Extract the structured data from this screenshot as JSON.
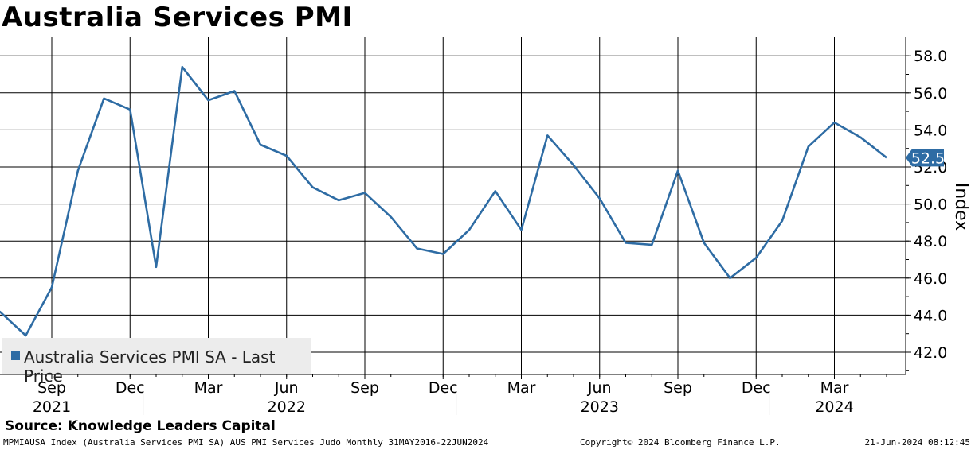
{
  "header": {
    "title": "Australia Services PMI"
  },
  "source": "Source: Knowledge Leaders Capital",
  "footer": {
    "left": "MPMIAUSA Index (Australia Services PMI SA) AUS PMI Services Judo  Monthly 31MAY2016-22JUN2024",
    "middle": "Copyright© 2024 Bloomberg Finance L.P.",
    "right": "21-Jun-2024 08:12:45"
  },
  "colors": {
    "line": "#2e6ca4",
    "grid": "#000000"
  },
  "chart_data": {
    "type": "line",
    "title": "Australia Services PMI",
    "ylabel": "Index",
    "ylim": [
      41.0,
      59.0
    ],
    "yticks": [
      42.0,
      44.0,
      46.0,
      48.0,
      50.0,
      52.0,
      54.0,
      56.0,
      58.0
    ],
    "ytick_labels": [
      "42.0",
      "44.0",
      "46.0",
      "48.0",
      "50.0",
      "52.0",
      "54.0",
      "56.0",
      "58.0"
    ],
    "grid": true,
    "legend": "bottom-left",
    "last_value_label": "52.5",
    "x_month_ticks": [
      {
        "date": "2021-09",
        "label": "Sep"
      },
      {
        "date": "2021-12",
        "label": "Dec"
      },
      {
        "date": "2022-03",
        "label": "Mar"
      },
      {
        "date": "2022-06",
        "label": "Jun"
      },
      {
        "date": "2022-09",
        "label": "Sep"
      },
      {
        "date": "2022-12",
        "label": "Dec"
      },
      {
        "date": "2023-03",
        "label": "Mar"
      },
      {
        "date": "2023-06",
        "label": "Jun"
      },
      {
        "date": "2023-09",
        "label": "Sep"
      },
      {
        "date": "2023-12",
        "label": "Dec"
      },
      {
        "date": "2024-03",
        "label": "Mar"
      }
    ],
    "x_year_ticks": [
      {
        "date": "2021-09",
        "label": "2021"
      },
      {
        "date": "2022-06",
        "label": "2022"
      },
      {
        "date": "2023-06",
        "label": "2023"
      },
      {
        "date": "2024-03",
        "label": "2024"
      }
    ],
    "x_year_separators": [
      "2022-01",
      "2023-01",
      "2024-01"
    ],
    "series": [
      {
        "name": "Australia Services PMI SA - Last Price",
        "color": "#2e6ca4",
        "points": [
          {
            "x": "2021-07",
            "y": 44.2
          },
          {
            "x": "2021-08",
            "y": 42.9
          },
          {
            "x": "2021-09",
            "y": 45.5
          },
          {
            "x": "2021-10",
            "y": 51.8
          },
          {
            "x": "2021-11",
            "y": 55.7
          },
          {
            "x": "2021-12",
            "y": 55.1
          },
          {
            "x": "2022-01",
            "y": 46.6
          },
          {
            "x": "2022-02",
            "y": 57.4
          },
          {
            "x": "2022-03",
            "y": 55.6
          },
          {
            "x": "2022-04",
            "y": 56.1
          },
          {
            "x": "2022-05",
            "y": 53.2
          },
          {
            "x": "2022-06",
            "y": 52.6
          },
          {
            "x": "2022-07",
            "y": 50.9
          },
          {
            "x": "2022-08",
            "y": 50.2
          },
          {
            "x": "2022-09",
            "y": 50.6
          },
          {
            "x": "2022-10",
            "y": 49.3
          },
          {
            "x": "2022-11",
            "y": 47.6
          },
          {
            "x": "2022-12",
            "y": 47.3
          },
          {
            "x": "2023-01",
            "y": 48.6
          },
          {
            "x": "2023-02",
            "y": 50.7
          },
          {
            "x": "2023-03",
            "y": 48.6
          },
          {
            "x": "2023-04",
            "y": 53.7
          },
          {
            "x": "2023-05",
            "y": 52.1
          },
          {
            "x": "2023-06",
            "y": 50.3
          },
          {
            "x": "2023-07",
            "y": 47.9
          },
          {
            "x": "2023-08",
            "y": 47.8
          },
          {
            "x": "2023-09",
            "y": 51.8
          },
          {
            "x": "2023-10",
            "y": 47.9
          },
          {
            "x": "2023-11",
            "y": 46.0
          },
          {
            "x": "2023-12",
            "y": 47.1
          },
          {
            "x": "2024-01",
            "y": 49.1
          },
          {
            "x": "2024-02",
            "y": 53.1
          },
          {
            "x": "2024-03",
            "y": 54.4
          },
          {
            "x": "2024-04",
            "y": 53.6
          },
          {
            "x": "2024-05",
            "y": 52.5
          }
        ]
      }
    ]
  }
}
